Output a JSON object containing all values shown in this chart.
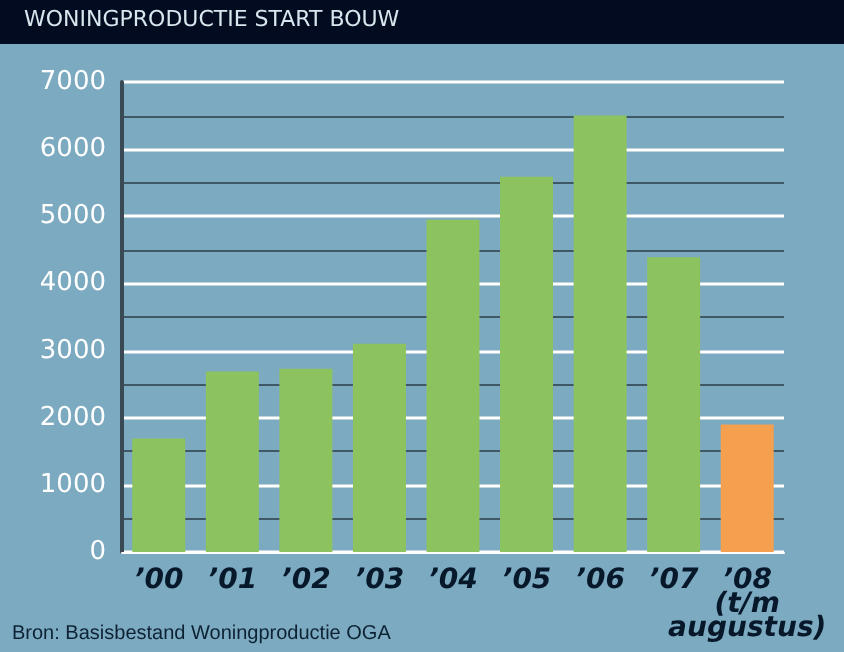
{
  "chart_data": {
    "type": "bar",
    "title": "WONINGPRODUCTIE START BOUW",
    "categories": [
      "’00",
      "’01",
      "’02",
      "’03",
      "’04",
      "’05",
      "’06",
      "’07",
      "’08\n(t/m\naugustus)"
    ],
    "values": [
      1690,
      2690,
      2730,
      3100,
      4950,
      5590,
      6500,
      4390,
      1900
    ],
    "colors": [
      "#8dc35e",
      "#8dc35e",
      "#8dc35e",
      "#8dc35e",
      "#8dc35e",
      "#8dc35e",
      "#8dc35e",
      "#8dc35e",
      "#f5a04e"
    ],
    "ylim": [
      0,
      7000
    ],
    "yticks": [
      0,
      1000,
      2000,
      3000,
      4000,
      5000,
      6000,
      7000
    ],
    "grid": true,
    "annotations": [
      "Bron: Basisbestand Woningproductie OGA"
    ]
  }
}
